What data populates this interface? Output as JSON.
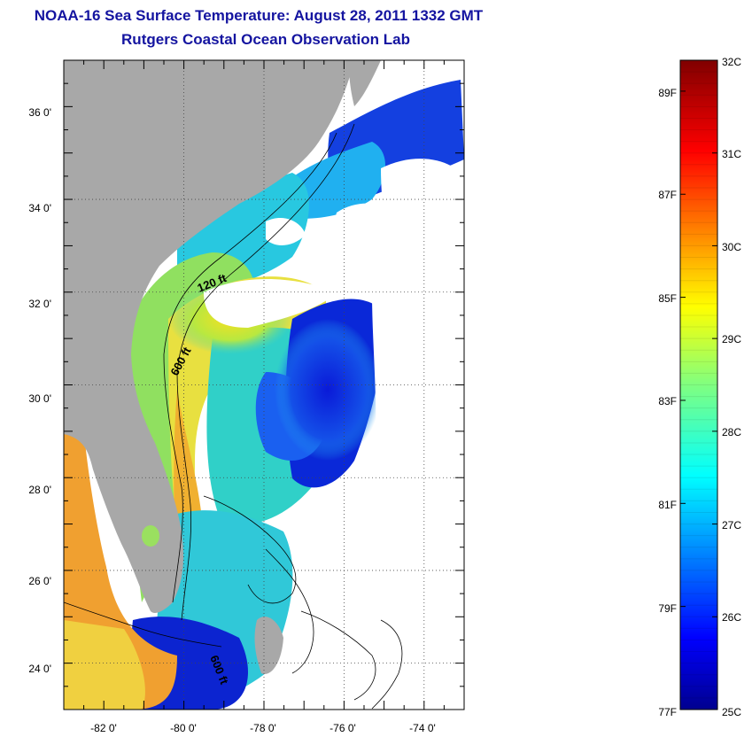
{
  "title": "NOAA-16 Sea Surface Temperature:  August 28, 2011 1332 GMT",
  "subtitle": "Rutgers Coastal Ocean Observation Lab",
  "map": {
    "lon_range": [
      -83,
      -73
    ],
    "lat_range": [
      23,
      37
    ],
    "lon_ticks": [
      "-82 0'",
      "-80 0'",
      "-78 0'",
      "-76 0'",
      "-74 0'"
    ],
    "lat_ticks": [
      "36 0'",
      "34 0'",
      "32 0'",
      "30 0'",
      "28 0'",
      "26 0'",
      "24 0'"
    ],
    "contour_labels": [
      "120 ft",
      "600 ft",
      "600 ft"
    ],
    "colors": {
      "land": "#a8a8a8",
      "cloud": "#ffffff",
      "coastline": "#000000"
    }
  },
  "colorbar": {
    "celsius_range": [
      25,
      32
    ],
    "fahrenheit_labels": [
      "89F",
      "87F",
      "85F",
      "83F",
      "81F",
      "79F",
      "77F"
    ],
    "celsius_labels": [
      "32C",
      "31C",
      "30C",
      "29C",
      "28C",
      "27C",
      "26C",
      "25C"
    ],
    "colormap": "jet"
  }
}
